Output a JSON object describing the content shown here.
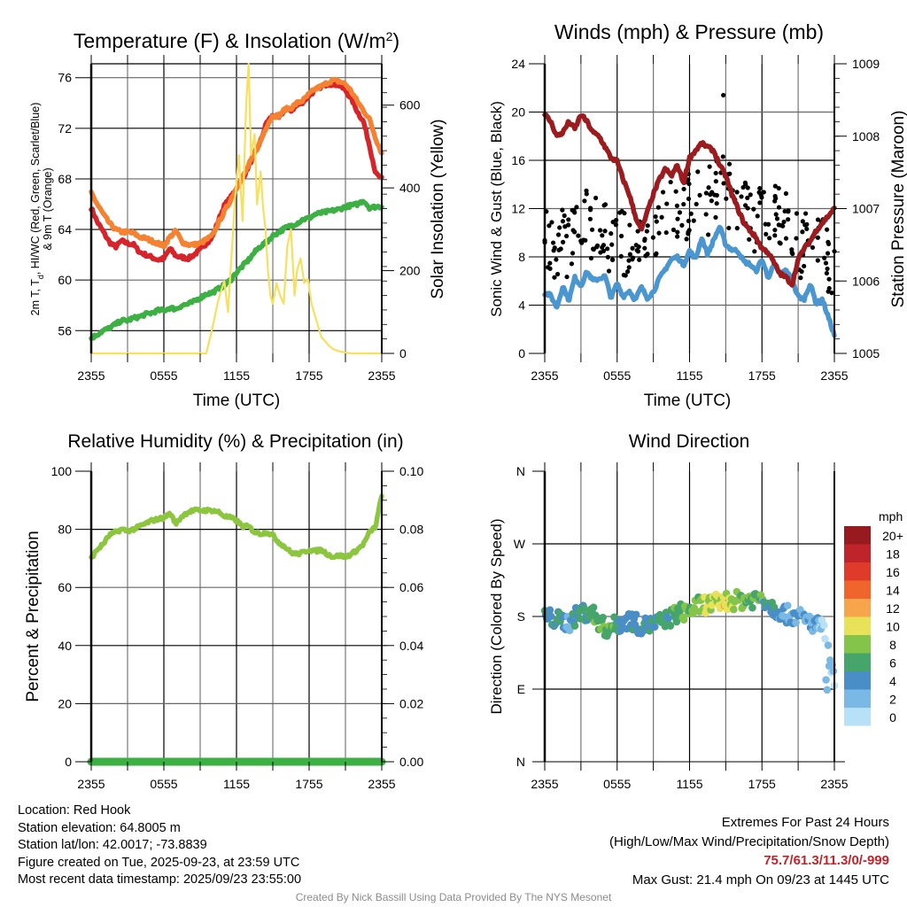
{
  "chart_data": [
    {
      "id": "temperature",
      "type": "line",
      "title": "Temperature (F) & Insolation (W/m",
      "title_sup": "2",
      "title_close": ")",
      "xlabel": "Time (UTC)",
      "ylabel_line1": "2m T, T",
      "ylabel_sub": "d",
      "ylabel_line1_rest": ", HI/WC (Red, Green, Scarlet/Blue)",
      "ylabel_line2": "& 9m T (Orange)",
      "y2label": "Solar Insolation (Yellow)",
      "x_ticks": [
        "2355",
        "0555",
        "1155",
        "1755",
        "2355"
      ],
      "x_hours": [
        0,
        24
      ],
      "ylim": [
        54.2,
        77.1
      ],
      "y_ticks": [
        56,
        60,
        64,
        68,
        72,
        76
      ],
      "y2lim": [
        0,
        700
      ],
      "y2_ticks": [
        0,
        200,
        400,
        600
      ],
      "grid": true,
      "series": [
        {
          "name": "2m Temperature",
          "color": "#d7242a",
          "axis": "left",
          "x": [
            0,
            0.5,
            1,
            1.5,
            2,
            2.5,
            3,
            3.5,
            4,
            4.5,
            5,
            5.5,
            6,
            6.5,
            7,
            7.5,
            8,
            8.5,
            9,
            9.5,
            10,
            10.5,
            11,
            11.5,
            12,
            12.5,
            13,
            13.5,
            14,
            14.5,
            15,
            15.5,
            16,
            16.5,
            17,
            17.5,
            18,
            18.5,
            19,
            19.5,
            20,
            20.5,
            21,
            21.5,
            22,
            22.5,
            23,
            23.5,
            24
          ],
          "values": [
            65.7,
            64.6,
            63.8,
            63.0,
            62.6,
            63.1,
            62.9,
            62.8,
            62.2,
            62.0,
            61.8,
            61.6,
            61.7,
            62.5,
            61.9,
            61.8,
            61.7,
            62.0,
            62.4,
            62.9,
            63.4,
            64.7,
            65.9,
            66.5,
            67.3,
            68.0,
            69.0,
            70.0,
            71.0,
            72.5,
            73.0,
            72.8,
            73.5,
            73.4,
            73.8,
            74.1,
            74.6,
            75.0,
            75.3,
            75.5,
            75.5,
            75.4,
            75.0,
            74.3,
            73.3,
            72.5,
            70.6,
            68.4,
            68.0
          ]
        },
        {
          "name": "9m Temperature",
          "color": "#f58231",
          "axis": "left",
          "x": [
            0,
            0.5,
            1,
            1.5,
            2,
            2.5,
            3,
            3.5,
            4,
            4.5,
            5,
            5.5,
            6,
            6.5,
            7,
            7.5,
            8,
            8.5,
            9,
            9.5,
            10,
            10.5,
            11,
            11.5,
            12,
            12.5,
            13,
            13.5,
            14,
            14.5,
            15,
            15.5,
            16,
            16.5,
            17,
            17.5,
            18,
            18.5,
            19,
            19.5,
            20,
            20.5,
            21,
            21.5,
            22,
            22.5,
            23,
            23.5,
            24
          ],
          "values": [
            66.9,
            66.0,
            65.2,
            64.5,
            64.0,
            63.8,
            63.8,
            63.7,
            63.4,
            63.3,
            63.1,
            62.9,
            62.7,
            63.4,
            63.9,
            63.0,
            62.8,
            62.8,
            62.9,
            63.2,
            63.5,
            64.5,
            65.4,
            66.3,
            67.3,
            68.1,
            69.1,
            70.0,
            71.0,
            72.2,
            73.0,
            73.0,
            73.5,
            73.6,
            74.0,
            74.2,
            74.7,
            75.1,
            75.3,
            75.6,
            75.8,
            75.7,
            75.5,
            74.9,
            74.1,
            73.4,
            72.7,
            71.2,
            70.0
          ]
        },
        {
          "name": "Dew Point",
          "color": "#3cb043",
          "axis": "left",
          "x": [
            0,
            0.5,
            1,
            1.5,
            2,
            2.5,
            3,
            3.5,
            4,
            4.5,
            5,
            5.5,
            6,
            6.5,
            7,
            7.5,
            8,
            8.5,
            9,
            9.5,
            10,
            10.5,
            11,
            11.5,
            12,
            12.5,
            13,
            13.5,
            14,
            14.5,
            15,
            15.5,
            16,
            16.5,
            17,
            17.5,
            18,
            18.5,
            19,
            19.5,
            20,
            20.5,
            21,
            21.5,
            22,
            22.5,
            23,
            23.5,
            24
          ],
          "values": [
            55.4,
            55.7,
            56.0,
            56.2,
            56.5,
            56.8,
            56.8,
            57.0,
            57.1,
            57.3,
            57.4,
            57.6,
            57.6,
            57.8,
            57.7,
            58.0,
            58.1,
            58.3,
            58.6,
            58.9,
            59.0,
            59.3,
            59.6,
            60.0,
            60.6,
            61.1,
            61.6,
            62.2,
            62.7,
            63.0,
            63.5,
            63.8,
            64.1,
            64.3,
            64.5,
            64.8,
            64.9,
            65.2,
            65.3,
            65.4,
            65.5,
            65.6,
            65.8,
            65.9,
            66.0,
            66.3,
            65.7,
            65.8,
            65.8
          ]
        },
        {
          "name": "Solar Insolation",
          "color": "#f6e05e",
          "axis": "right",
          "x": [
            0,
            9.5,
            10,
            10.5,
            11,
            11.3,
            11.6,
            11.9,
            12.2,
            12.5,
            12.8,
            13.0,
            13.2,
            13.5,
            13.7,
            14.0,
            14.2,
            14.4,
            14.6,
            14.8,
            15.0,
            15.3,
            15.6,
            15.9,
            16.2,
            16.5,
            16.8,
            17.0,
            17.3,
            17.6,
            17.9,
            18.2,
            18.5,
            18.8,
            19.0,
            19.3,
            19.6,
            20.0,
            20.5,
            21.0,
            21.5,
            22.0,
            22.5,
            23.0,
            24
          ],
          "values": [
            0,
            0,
            60,
            130,
            175,
            100,
            240,
            380,
            480,
            320,
            600,
            700,
            480,
            530,
            360,
            440,
            350,
            300,
            200,
            140,
            120,
            170,
            140,
            120,
            260,
            300,
            140,
            200,
            230,
            170,
            180,
            120,
            90,
            60,
            40,
            30,
            20,
            10,
            5,
            2,
            0,
            0,
            0,
            0,
            0
          ]
        }
      ]
    },
    {
      "id": "winds",
      "type": "line",
      "title": "Winds (mph) & Pressure (mb)",
      "xlabel": "Time (UTC)",
      "ylabel": "Sonic Wind & Gust (Blue, Black)",
      "y2label": "Station Pressure (Maroon)",
      "x_ticks": [
        "2355",
        "0555",
        "1155",
        "1755",
        "2355"
      ],
      "x_hours": [
        0,
        24
      ],
      "ylim": [
        0,
        24
      ],
      "y_ticks": [
        0,
        4,
        8,
        12,
        16,
        20,
        24
      ],
      "y2lim": [
        1005,
        1009
      ],
      "y2_ticks": [
        1005,
        1006,
        1007,
        1008,
        1009
      ],
      "grid": true,
      "series": [
        {
          "name": "Sonic Wind",
          "color": "#4a96d0",
          "axis": "left",
          "x": [
            0,
            0.5,
            1,
            1.5,
            2,
            2.5,
            3,
            3.5,
            4,
            4.5,
            5,
            5.5,
            6,
            6.5,
            7,
            7.5,
            8,
            8.5,
            9,
            9.5,
            10,
            10.5,
            11,
            11.5,
            12,
            12.5,
            13,
            13.5,
            14,
            14.5,
            15,
            15.5,
            16,
            16.5,
            17,
            17.5,
            18,
            18.5,
            19,
            19.5,
            20,
            20.5,
            21,
            21.5,
            22,
            22.5,
            23,
            23.5,
            24
          ],
          "values": [
            5.0,
            4.8,
            3.8,
            5.6,
            4.4,
            6.3,
            5.6,
            6.8,
            6.0,
            6.2,
            6.4,
            4.6,
            5.8,
            4.7,
            5.2,
            4.4,
            5.5,
            4.6,
            5.1,
            6.2,
            7.0,
            7.8,
            8.0,
            7.3,
            8.5,
            7.8,
            9.6,
            8.2,
            9.4,
            10.5,
            9.0,
            8.6,
            8.5,
            7.6,
            7.4,
            6.8,
            7.8,
            6.3,
            7.3,
            6.6,
            6.9,
            6.0,
            4.7,
            4.5,
            5.8,
            4.1,
            4.5,
            3.0,
            1.5
          ]
        },
        {
          "name": "Gust",
          "color": "#000000",
          "axis": "left",
          "style": "points",
          "point_count": 260
        },
        {
          "name": "Station Pressure",
          "color": "#9b1b1e",
          "axis": "right",
          "x": [
            0,
            0.5,
            1,
            1.5,
            2,
            2.5,
            3,
            3.5,
            4,
            4.5,
            5,
            5.5,
            6,
            6.5,
            7,
            7.5,
            8,
            8.5,
            9,
            9.5,
            10,
            10.5,
            11,
            11.5,
            12,
            12.5,
            13,
            13.5,
            14,
            14.5,
            15,
            15.5,
            16,
            16.5,
            17,
            17.5,
            18,
            18.5,
            19,
            19.5,
            20,
            20.5,
            21,
            21.5,
            22,
            22.5,
            23,
            23.5,
            24
          ],
          "values": [
            1008.3,
            1008.2,
            1008.0,
            1008.05,
            1008.2,
            1008.1,
            1008.3,
            1008.2,
            1008.05,
            1008.0,
            1007.85,
            1007.7,
            1007.65,
            1007.4,
            1007.2,
            1006.9,
            1006.7,
            1006.95,
            1007.2,
            1007.4,
            1007.55,
            1007.45,
            1007.6,
            1007.35,
            1007.7,
            1007.8,
            1007.9,
            1007.85,
            1007.8,
            1007.6,
            1007.45,
            1007.2,
            1007.0,
            1006.8,
            1006.7,
            1006.6,
            1006.45,
            1006.4,
            1006.25,
            1006.1,
            1006.05,
            1005.95,
            1006.3,
            1006.45,
            1006.55,
            1006.7,
            1006.8,
            1006.9,
            1007.0
          ]
        }
      ]
    },
    {
      "id": "humidity",
      "type": "line",
      "title": "Relative Humidity (%) & Precipitation (in)",
      "xlabel": "",
      "ylabel": "Percent & Precipitation",
      "x_ticks": [
        "2355",
        "0555",
        "1155",
        "1755",
        "2355"
      ],
      "x_hours": [
        0,
        24
      ],
      "ylim": [
        0,
        100
      ],
      "y_ticks": [
        0,
        20,
        40,
        60,
        80,
        100
      ],
      "y2lim": [
        0,
        0.1
      ],
      "y2_ticks": [
        "0.00",
        "0.02",
        "0.04",
        "0.06",
        "0.08",
        "0.10"
      ],
      "grid": true,
      "series": [
        {
          "name": "Relative Humidity",
          "color": "#8cc63f",
          "axis": "left",
          "x": [
            0,
            0.5,
            1,
            1.5,
            2,
            2.5,
            3,
            3.5,
            4,
            4.5,
            5,
            5.5,
            6,
            6.5,
            7,
            7.5,
            8,
            8.5,
            9,
            9.5,
            10,
            10.5,
            11,
            11.5,
            12,
            12.5,
            13,
            13.5,
            14,
            14.5,
            15,
            15.5,
            16,
            16.5,
            17,
            17.5,
            18,
            18.5,
            19,
            19.5,
            20,
            20.5,
            21,
            21.5,
            22,
            22.5,
            23,
            23.5,
            24
          ],
          "values": [
            70,
            73,
            75,
            78,
            79,
            80,
            79.5,
            80,
            81,
            82,
            83,
            83.5,
            84,
            85.5,
            82,
            84.5,
            86,
            86.5,
            86.5,
            86.5,
            86.5,
            86,
            84.5,
            84,
            83,
            81,
            81,
            79,
            78.5,
            79,
            78,
            75.5,
            74,
            72,
            71.5,
            72,
            73,
            72.5,
            73,
            71.5,
            70.5,
            71,
            70.5,
            71.5,
            73,
            75,
            79,
            81,
            92
          ]
        },
        {
          "name": "Precipitation",
          "color": "#3cb043",
          "axis": "right",
          "x": [
            0,
            24
          ],
          "values": [
            0,
            0
          ]
        }
      ]
    },
    {
      "id": "direction",
      "type": "scatter",
      "title": "Wind Direction",
      "xlabel": "",
      "ylabel": "Direction (Colored By Speed)",
      "x_ticks": [
        "2355",
        "0555",
        "1155",
        "1755",
        "2355"
      ],
      "x_hours": [
        0,
        24
      ],
      "ylim": [
        0,
        360
      ],
      "y_ticks": [
        "N",
        "E",
        "S",
        "W",
        "N"
      ],
      "grid": true,
      "legend": {
        "title": "mph",
        "placement": "right",
        "labels": [
          "20+",
          "18",
          "16",
          "14",
          "12",
          "10",
          "8",
          "6",
          "4",
          "2",
          "0"
        ],
        "colors": [
          "#971b1e",
          "#c0242b",
          "#e03a2a",
          "#f0652b",
          "#f6a54a",
          "#e8e259",
          "#84c44a",
          "#46a56a",
          "#4a8ec8",
          "#7ab9e5",
          "#b8e1f7"
        ]
      },
      "series": [
        {
          "name": "Direction",
          "style": "points",
          "trend_x": [
            0,
            1,
            2,
            3,
            4,
            5,
            6,
            7,
            8,
            9,
            10,
            11,
            12,
            13,
            14,
            15,
            16,
            17,
            18,
            19,
            20,
            21,
            22,
            23,
            23.5,
            24
          ],
          "trend_deg": [
            180,
            176,
            172,
            186,
            183,
            165,
            170,
            176,
            168,
            170,
            175,
            184,
            188,
            195,
            196,
            199,
            200,
            201,
            204,
            190,
            183,
            180,
            173,
            166,
            140,
            95
          ],
          "trend_speed": [
            4,
            5,
            3,
            6,
            6,
            7,
            5,
            4,
            4,
            5,
            5,
            6,
            7,
            8,
            9,
            10,
            8,
            7,
            6,
            4,
            3,
            3,
            3,
            2,
            1,
            1
          ]
        }
      ]
    }
  ],
  "footer": {
    "location": "Location: Red Hook",
    "elevation": "Station elevation: 64.8005 m",
    "latlon": "Station lat/lon: 42.0017; -73.8839",
    "created": "Figure created on Tue, 2025-09-23, at 23:59 UTC",
    "recent": "Most recent data timestamp: 2025/09/23 23:55:00",
    "extremes_title": "Extremes For Past 24 Hours",
    "extremes_fields": "(High/Low/Max Wind/Precipitation/Snow Depth)",
    "extremes_values": "75.7/61.3/11.3/0/-999",
    "max_gust": "Max Gust: 21.4 mph On 09/23 at 1445 UTC",
    "credit": "Created By Nick Bassill Using Data Provided By The NYS Mesonet"
  }
}
